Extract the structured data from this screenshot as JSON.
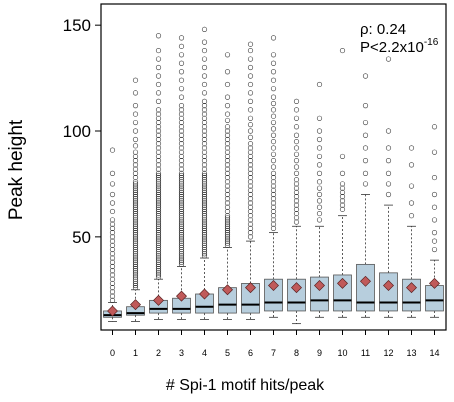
{
  "chart_data": {
    "type": "box",
    "title": "",
    "xlabel": "# Spi-1 motif hits/peak",
    "ylabel": "Peak height",
    "categories": [
      "0",
      "1",
      "2",
      "3",
      "4",
      "5",
      "6",
      "7",
      "8",
      "9",
      "10",
      "11",
      "12",
      "13",
      "14"
    ],
    "ylim": [
      6,
      160
    ],
    "yticks": [
      50,
      100,
      150
    ],
    "grid": false,
    "box_fill": "#b7cedd",
    "mean_marker_color": "#c05a5a",
    "annotation": {
      "rho": "ρ: 0.24",
      "p_prefix": "P<2.2x10",
      "p_exponent": "-16"
    },
    "boxes": [
      {
        "category": "0",
        "whisker_low": 10,
        "q1": 12,
        "median": 13,
        "q3": 15,
        "whisker_high": 19,
        "mean": 15,
        "outliers": [
          20,
          22,
          24,
          26,
          28,
          30,
          32,
          34,
          36,
          38,
          40,
          42,
          44,
          46,
          48,
          50,
          52,
          54,
          56,
          58,
          62,
          66,
          70,
          75,
          80,
          91
        ]
      },
      {
        "category": "1",
        "whisker_low": 10,
        "q1": 13,
        "median": 14,
        "q3": 17,
        "whisker_high": 25,
        "mean": 18,
        "outliers": [
          26,
          27,
          28,
          29,
          30,
          31,
          32,
          33,
          34,
          35,
          36,
          37,
          38,
          39,
          40,
          41,
          42,
          43,
          44,
          45,
          46,
          47,
          48,
          49,
          50,
          51,
          52,
          53,
          54,
          55,
          56,
          57,
          58,
          59,
          60,
          61,
          62,
          63,
          64,
          65,
          66,
          67,
          68,
          69,
          70,
          71,
          72,
          73,
          74,
          75,
          76,
          78,
          80,
          82,
          84,
          86,
          88,
          90,
          93,
          96,
          100,
          104,
          108,
          112,
          118,
          124
        ]
      },
      {
        "category": "2",
        "whisker_low": 11,
        "q1": 14,
        "median": 16,
        "q3": 20,
        "whisker_high": 30,
        "mean": 20,
        "outliers": [
          31,
          32,
          33,
          34,
          35,
          36,
          37,
          38,
          39,
          40,
          41,
          42,
          43,
          44,
          45,
          46,
          47,
          48,
          49,
          50,
          51,
          52,
          53,
          54,
          55,
          56,
          57,
          58,
          59,
          60,
          61,
          62,
          63,
          64,
          65,
          66,
          67,
          68,
          69,
          70,
          71,
          72,
          73,
          74,
          75,
          76,
          77,
          78,
          79,
          80,
          82,
          84,
          86,
          88,
          90,
          92,
          94,
          96,
          98,
          100,
          102,
          104,
          106,
          108,
          110,
          114,
          118,
          122,
          126,
          130,
          134,
          138,
          145
        ]
      },
      {
        "category": "3",
        "whisker_low": 11,
        "q1": 14,
        "median": 16,
        "q3": 21,
        "whisker_high": 36,
        "mean": 22,
        "outliers": [
          37,
          38,
          39,
          40,
          41,
          42,
          43,
          44,
          45,
          46,
          47,
          48,
          49,
          50,
          51,
          52,
          53,
          54,
          55,
          56,
          57,
          58,
          59,
          60,
          61,
          62,
          63,
          64,
          65,
          66,
          67,
          68,
          69,
          70,
          71,
          72,
          73,
          74,
          75,
          76,
          77,
          78,
          79,
          80,
          82,
          84,
          86,
          88,
          90,
          92,
          94,
          96,
          98,
          100,
          102,
          104,
          106,
          108,
          110,
          112,
          116,
          120,
          124,
          128,
          132,
          136,
          140,
          144
        ]
      },
      {
        "category": "4",
        "whisker_low": 11,
        "q1": 14,
        "median": 17,
        "q3": 23,
        "whisker_high": 40,
        "mean": 23,
        "outliers": [
          41,
          42,
          43,
          44,
          45,
          46,
          47,
          48,
          49,
          50,
          51,
          52,
          53,
          54,
          55,
          56,
          57,
          58,
          59,
          60,
          61,
          62,
          63,
          64,
          65,
          66,
          67,
          68,
          69,
          70,
          71,
          72,
          73,
          74,
          75,
          76,
          77,
          78,
          79,
          80,
          82,
          84,
          86,
          88,
          90,
          92,
          94,
          96,
          98,
          100,
          102,
          104,
          106,
          108,
          110,
          112,
          114,
          118,
          122,
          126,
          130,
          134,
          138,
          142,
          148
        ]
      },
      {
        "category": "5",
        "whisker_low": 11,
        "q1": 14,
        "median": 18,
        "q3": 26,
        "whisker_high": 45,
        "mean": 25,
        "outliers": [
          46,
          47,
          48,
          49,
          50,
          51,
          52,
          53,
          54,
          55,
          56,
          57,
          58,
          59,
          60,
          62,
          64,
          66,
          68,
          70,
          72,
          74,
          76,
          78,
          80,
          82,
          84,
          86,
          88,
          90,
          92,
          94,
          96,
          98,
          100,
          102,
          105,
          108,
          112,
          116,
          122,
          128,
          136
        ]
      },
      {
        "category": "6",
        "whisker_low": 11,
        "q1": 14,
        "median": 18,
        "q3": 28,
        "whisker_high": 48,
        "mean": 26,
        "outliers": [
          50,
          52,
          54,
          56,
          58,
          60,
          62,
          64,
          66,
          68,
          70,
          72,
          74,
          76,
          78,
          80,
          82,
          84,
          86,
          88,
          90,
          92,
          94,
          97,
          100,
          103,
          106,
          110,
          114,
          118,
          122,
          126,
          130,
          134,
          138,
          141
        ]
      },
      {
        "category": "7",
        "whisker_low": 12,
        "q1": 15,
        "median": 19,
        "q3": 30,
        "whisker_high": 52,
        "mean": 27,
        "outliers": [
          54,
          56,
          58,
          60,
          62,
          64,
          66,
          68,
          70,
          72,
          74,
          76,
          78,
          80,
          83,
          86,
          89,
          92,
          95,
          98,
          101,
          104,
          107,
          110,
          113,
          116,
          120,
          124,
          128,
          132,
          136,
          144
        ]
      },
      {
        "category": "8",
        "whisker_low": 9,
        "q1": 15,
        "median": 19,
        "q3": 30,
        "whisker_high": 55,
        "mean": 26,
        "outliers": [
          57,
          59,
          61,
          63,
          65,
          67,
          69,
          71,
          73,
          75,
          77,
          80,
          83,
          86,
          89,
          92,
          95,
          98,
          102,
          106,
          110,
          114
        ]
      },
      {
        "category": "9",
        "whisker_low": 12,
        "q1": 15,
        "median": 20,
        "q3": 31,
        "whisker_high": 55,
        "mean": 27,
        "outliers": [
          58,
          61,
          64,
          67,
          70,
          73,
          76,
          80,
          84,
          88,
          92,
          96,
          100,
          106,
          122
        ]
      },
      {
        "category": "10",
        "whisker_low": 12,
        "q1": 15,
        "median": 20,
        "q3": 32,
        "whisker_high": 60,
        "mean": 28,
        "outliers": [
          63,
          65,
          67,
          69,
          71,
          73,
          75,
          80,
          88,
          138
        ]
      },
      {
        "category": "11",
        "whisker_low": 12,
        "q1": 15,
        "median": 19,
        "q3": 37,
        "whisker_high": 70,
        "mean": 29,
        "outliers": [
          75,
          80,
          86,
          92,
          98,
          104,
          112,
          126
        ]
      },
      {
        "category": "12",
        "whisker_low": 12,
        "q1": 15,
        "median": 19,
        "q3": 33,
        "whisker_high": 65,
        "mean": 27,
        "outliers": [
          70,
          75,
          80,
          86,
          92,
          100,
          134
        ]
      },
      {
        "category": "13",
        "whisker_low": 12,
        "q1": 15,
        "median": 19,
        "q3": 30,
        "whisker_high": 55,
        "mean": 26,
        "outliers": [
          60,
          66,
          74,
          84,
          92
        ]
      },
      {
        "category": "14",
        "whisker_low": 12,
        "q1": 15,
        "median": 20,
        "q3": 27,
        "whisker_high": 39,
        "mean": 28,
        "outliers": [
          44,
          48,
          52,
          58,
          64,
          70,
          78,
          90,
          102
        ]
      }
    ]
  }
}
